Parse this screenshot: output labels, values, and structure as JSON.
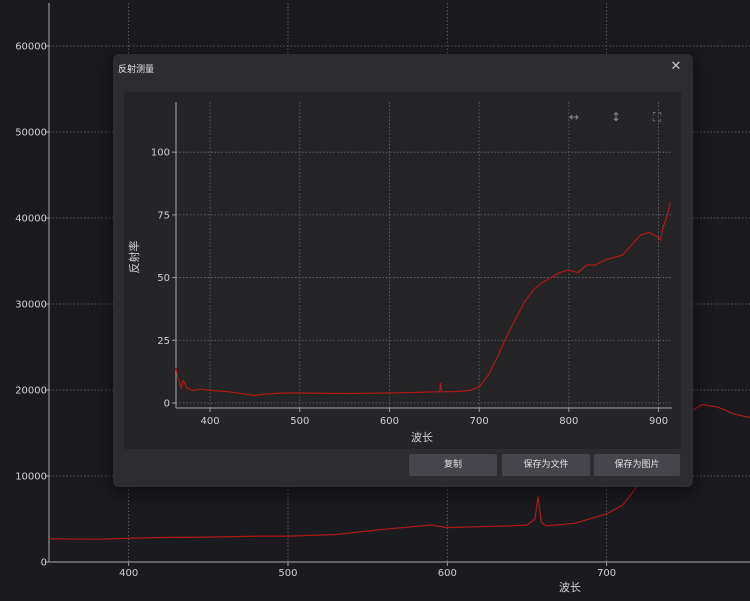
{
  "background_chart": {
    "xlabel": "波长",
    "x_ticks": [
      400,
      500,
      600,
      700
    ],
    "y_ticks": [
      0,
      10000,
      20000,
      30000,
      40000,
      50000,
      60000
    ]
  },
  "dialog": {
    "title": "反射测量",
    "close_icon": "close-icon",
    "buttons": {
      "copy": "复制",
      "save_file": "保存为文件",
      "save_image": "保存为图片"
    },
    "toolbar_icons": [
      "horizontal-zoom-icon",
      "vertical-zoom-icon",
      "fit-view-icon"
    ]
  },
  "colors": {
    "series": "#b01818",
    "grid": "#6a6a70",
    "text": "#cfcfd4"
  },
  "chart_data": [
    {
      "type": "line",
      "xlabel": "波长",
      "ylabel": "",
      "xlim": [
        350,
        790
      ],
      "ylim": [
        0,
        65000
      ],
      "x_ticks": [
        400,
        500,
        600,
        700
      ],
      "y_ticks": [
        0,
        10000,
        20000,
        30000,
        40000,
        50000,
        60000
      ],
      "series": [
        {
          "x": [
            350,
            380,
            420,
            450,
            480,
            500,
            530,
            560,
            590,
            600,
            620,
            640,
            650,
            655,
            657,
            659,
            662,
            680,
            700,
            710,
            720,
            730,
            740,
            750,
            760,
            770,
            780,
            790
          ],
          "y": [
            2700,
            2650,
            2850,
            2900,
            3000,
            3000,
            3200,
            3800,
            4300,
            4000,
            4100,
            4200,
            4300,
            5000,
            7600,
            4600,
            4200,
            4500,
            5600,
            6600,
            9000,
            12500,
            15500,
            17200,
            18300,
            18000,
            17200,
            16800
          ]
        }
      ]
    },
    {
      "type": "line",
      "xlabel": "波长",
      "ylabel": "反射率",
      "xlim": [
        362,
        915
      ],
      "ylim": [
        -2,
        120
      ],
      "x_ticks": [
        400,
        500,
        600,
        700,
        800,
        900
      ],
      "y_ticks": [
        0,
        25,
        50,
        75,
        100
      ],
      "series": [
        {
          "x": [
            362,
            364,
            366,
            368,
            370,
            374,
            380,
            390,
            400,
            420,
            440,
            450,
            460,
            480,
            500,
            550,
            600,
            640,
            656,
            657,
            658,
            670,
            690,
            700,
            710,
            720,
            730,
            740,
            750,
            760,
            770,
            780,
            790,
            800,
            810,
            820,
            830,
            840,
            850,
            860,
            870,
            880,
            890,
            900,
            902,
            905,
            910,
            913
          ],
          "y": [
            14,
            10,
            8,
            6,
            9,
            6,
            5,
            5.5,
            5,
            4.5,
            3.5,
            3,
            3.5,
            4,
            4,
            3.8,
            4,
            4.3,
            4.5,
            8,
            4.5,
            4.5,
            5,
            6.5,
            11,
            18,
            26,
            33,
            40,
            45,
            48,
            50,
            52,
            53,
            52,
            55,
            55,
            57,
            58,
            59,
            63,
            67,
            68,
            66,
            65,
            70,
            75,
            80
          ]
        }
      ]
    }
  ]
}
